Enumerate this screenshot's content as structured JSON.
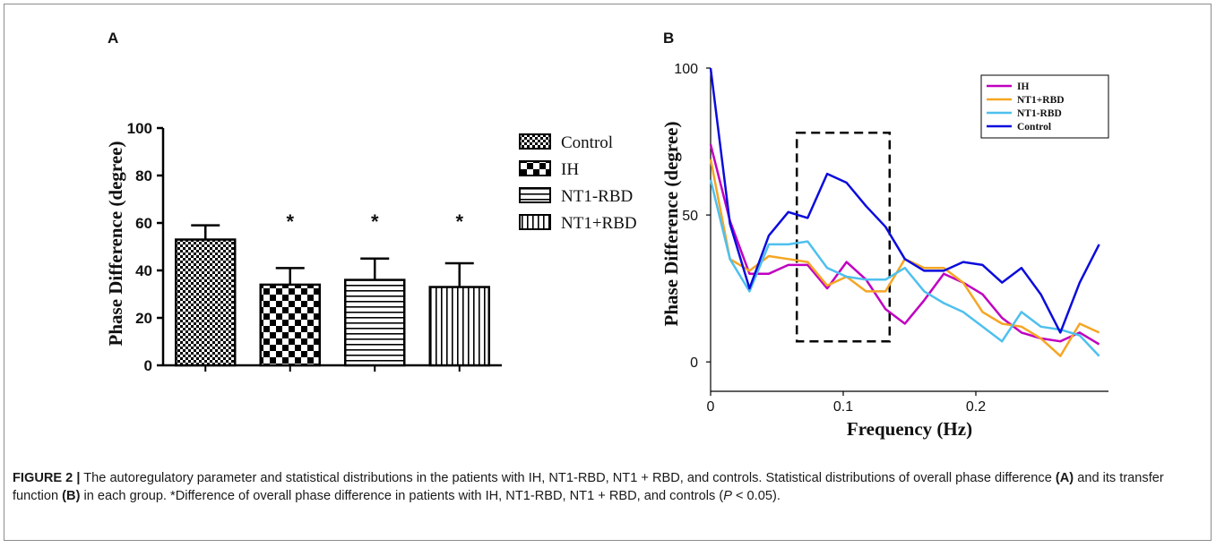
{
  "figure": {
    "caption": {
      "label": "FIGURE 2 |",
      "text1": " The autoregulatory parameter and statistical distributions in the patients with IH, NT1-RBD, NT1 + RBD, and controls. Statistical distributions of overall phase difference ",
      "ref_a": "(A)",
      "text2": " and its transfer function ",
      "ref_b": "(B)",
      "text3": " in each group. *Difference of overall phase difference in patients with IH, NT1-RBD, NT1 + RBD, and controls (",
      "p": "P",
      "text4": " < 0.05)."
    }
  },
  "chart_data": [
    {
      "panel": "A",
      "type": "bar",
      "ylabel": "Phase Difference (degree)",
      "xlabel": "",
      "ylim": [
        0,
        100
      ],
      "yticks": [
        "0",
        "20",
        "40",
        "60",
        "80",
        "100"
      ],
      "categories": [
        "Control",
        "IH",
        "NT1-RBD",
        "NT1+RBD"
      ],
      "values": [
        53,
        34,
        36,
        33
      ],
      "error_upper": [
        6,
        7,
        9,
        10
      ],
      "significance": [
        "",
        "*",
        "*",
        "*"
      ],
      "legend": [
        "Control",
        "IH",
        "NT1-RBD",
        "NT1+RBD"
      ],
      "legend_position": "right",
      "patterns": [
        "fine-checker",
        "coarse-checker",
        "horizontal-lines",
        "vertical-lines"
      ]
    },
    {
      "panel": "B",
      "type": "line",
      "xlabel": "Frequency (Hz)",
      "ylabel": "Phase Difference (degree)",
      "xlim": [
        0,
        0.3
      ],
      "ylim": [
        -10,
        100
      ],
      "xticks": [
        "0",
        "0.1",
        "0.2"
      ],
      "yticks": [
        "0",
        "50",
        "100"
      ],
      "legend_position": "top-right",
      "highlight_box": {
        "x": [
          0.065,
          0.135
        ],
        "y": [
          7,
          78
        ],
        "style": "dashed"
      },
      "x": [
        0,
        0.0146,
        0.0293,
        0.0439,
        0.0586,
        0.0732,
        0.0879,
        0.1025,
        0.1172,
        0.1318,
        0.1465,
        0.1611,
        0.1758,
        0.1904,
        0.2051,
        0.2197,
        0.2344,
        0.249,
        0.2637,
        0.2783,
        0.293
      ],
      "series": [
        {
          "name": "IH",
          "color": "#c000c0",
          "values": [
            74,
            48,
            30,
            30,
            33,
            33,
            25,
            34,
            28,
            18,
            13,
            21,
            30,
            27,
            23,
            15,
            10,
            8,
            7,
            10,
            6
          ]
        },
        {
          "name": "NT1+RBD",
          "color": "#f5a623",
          "values": [
            69,
            35,
            31,
            36,
            35,
            34,
            26,
            29,
            24,
            24,
            35,
            32,
            32,
            27,
            17,
            13,
            12,
            8,
            2,
            13,
            10
          ]
        },
        {
          "name": "NT1-RBD",
          "color": "#4ec0ee",
          "values": [
            62,
            35,
            24,
            40,
            40,
            41,
            32,
            29,
            28,
            28,
            32,
            24,
            20,
            17,
            12,
            7,
            17,
            12,
            11,
            9,
            2
          ]
        },
        {
          "name": "Control",
          "color": "#0b0bdd",
          "values": [
            100,
            47,
            25,
            43,
            51,
            49,
            64,
            61,
            53,
            46,
            35,
            31,
            31,
            34,
            33,
            27,
            32,
            23,
            10,
            27,
            40
          ]
        }
      ]
    }
  ]
}
